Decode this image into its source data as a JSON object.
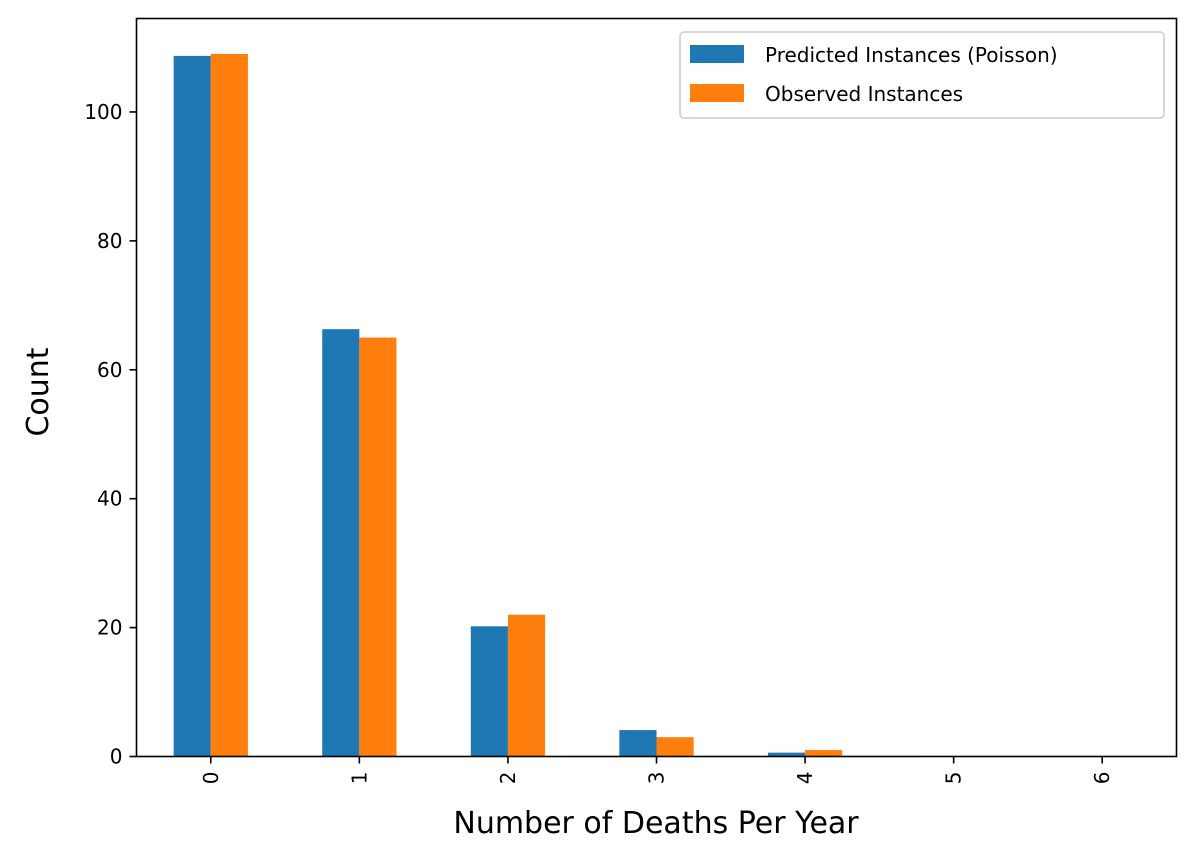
{
  "chart_data": {
    "type": "bar",
    "title": "",
    "xlabel": "Number of Deaths Per Year",
    "ylabel": "Count",
    "categories": [
      "0",
      "1",
      "2",
      "3",
      "4",
      "5",
      "6"
    ],
    "series": [
      {
        "name": "Predicted Instances (Poisson)",
        "color": "#1f77b4",
        "values": [
          108.7,
          66.3,
          20.2,
          4.1,
          0.6,
          0.1,
          0.0
        ]
      },
      {
        "name": "Observed Instances",
        "color": "#ff7f0e",
        "values": [
          109,
          65,
          22,
          3,
          1,
          0,
          0
        ]
      }
    ],
    "ylim": [
      0,
      114.5
    ],
    "yticks": [
      0,
      20,
      40,
      60,
      80,
      100
    ],
    "grid": false,
    "legend_position": "top-right",
    "x_tick_rotation": "vertical"
  }
}
